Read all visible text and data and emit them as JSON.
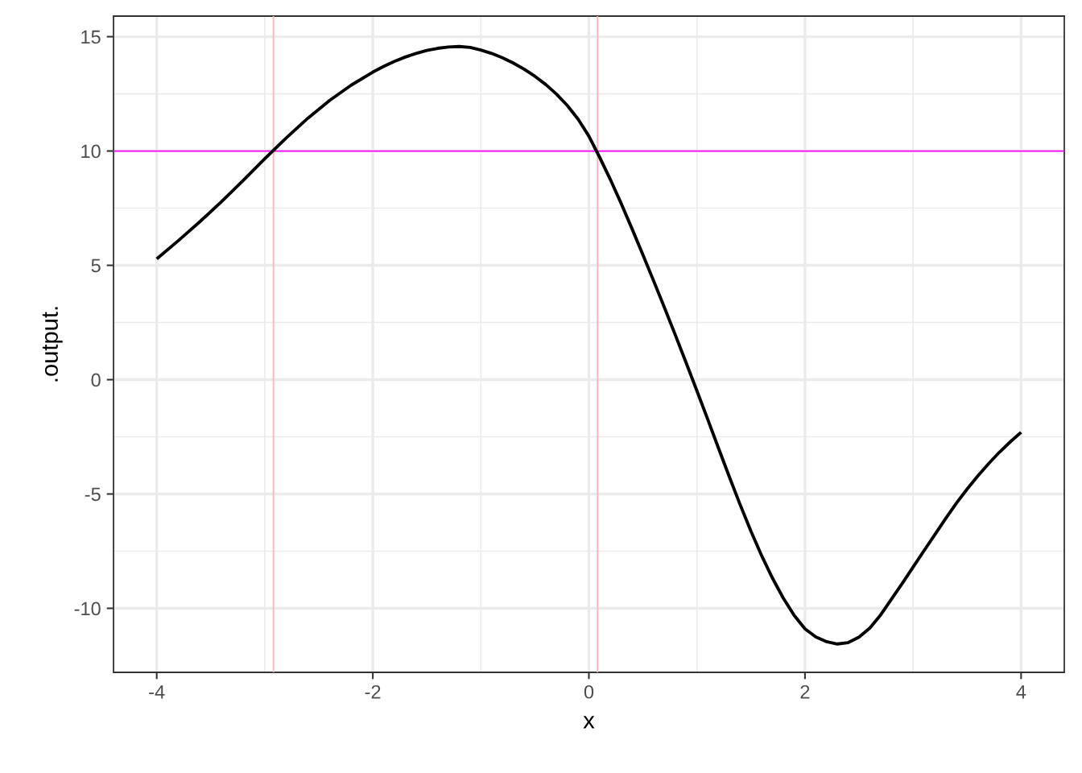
{
  "chart_data": {
    "type": "line",
    "xlabel": "x",
    "ylabel": ".output.",
    "x": [
      -4.0,
      -3.8,
      -3.6,
      -3.4,
      -3.2,
      -3.0,
      -2.8,
      -2.6,
      -2.4,
      -2.2,
      -2.0,
      -1.9,
      -1.8,
      -1.7,
      -1.6,
      -1.5,
      -1.4,
      -1.3,
      -1.2,
      -1.1,
      -1.0,
      -0.9,
      -0.8,
      -0.7,
      -0.6,
      -0.5,
      -0.4,
      -0.3,
      -0.2,
      -0.1,
      0.0,
      0.1,
      0.2,
      0.3,
      0.4,
      0.5,
      0.6,
      0.7,
      0.8,
      0.9,
      1.0,
      1.1,
      1.2,
      1.3,
      1.4,
      1.5,
      1.6,
      1.7,
      1.8,
      1.9,
      2.0,
      2.1,
      2.2,
      2.3,
      2.4,
      2.5,
      2.6,
      2.7,
      2.8,
      2.9,
      3.0,
      3.1,
      3.2,
      3.3,
      3.4,
      3.5,
      3.6,
      3.7,
      3.8,
      3.9,
      4.0
    ],
    "series": [
      {
        "color": "#000000",
        "values": [
          5.28,
          6.08,
          6.91,
          7.79,
          8.71,
          9.66,
          10.58,
          11.44,
          12.21,
          12.88,
          13.45,
          13.7,
          13.92,
          14.11,
          14.27,
          14.4,
          14.49,
          14.55,
          14.57,
          14.53,
          14.42,
          14.27,
          14.08,
          13.85,
          13.58,
          13.27,
          12.91,
          12.49,
          11.99,
          11.39,
          10.65,
          9.72,
          8.74,
          7.69,
          6.59,
          5.46,
          4.31,
          3.14,
          1.95,
          0.74,
          -0.49,
          -1.74,
          -3.0,
          -4.25,
          -5.47,
          -6.63,
          -7.71,
          -8.69,
          -9.56,
          -10.31,
          -10.9,
          -11.25,
          -11.46,
          -11.56,
          -11.5,
          -11.26,
          -10.86,
          -10.29,
          -9.6,
          -8.91,
          -8.2,
          -7.49,
          -6.79,
          -6.09,
          -5.41,
          -4.79,
          -4.21,
          -3.67,
          -3.17,
          -2.72,
          -2.3
        ]
      }
    ],
    "xlim": [
      -4.4,
      4.4
    ],
    "ylim": [
      -12.8,
      15.9
    ],
    "xticks": [
      -4,
      -2,
      0,
      2,
      4
    ],
    "yticks": [
      -10,
      -5,
      0,
      5,
      10,
      15
    ],
    "grid": true,
    "legend": false,
    "line_style": "solid",
    "ref_lines": [
      {
        "axis": "y",
        "value": 10,
        "color": "#ff00ff"
      },
      {
        "axis": "x",
        "value": -2.92,
        "color": "#ffb3b3"
      },
      {
        "axis": "x",
        "value": 0.08,
        "color": "#ffb3b3"
      }
    ]
  }
}
